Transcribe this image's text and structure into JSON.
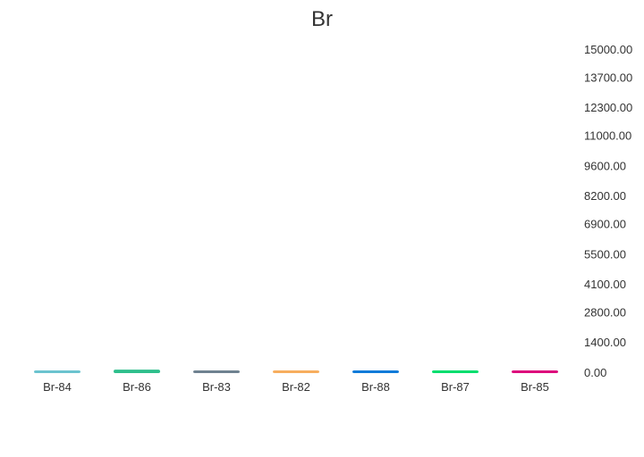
{
  "chart_data": {
    "type": "bar",
    "title": "Br",
    "categories": [
      "Br-84",
      "Br-86",
      "Br-83",
      "Br-82",
      "Br-88",
      "Br-87",
      "Br-85"
    ],
    "values": [
      40,
      160,
      20,
      20,
      70,
      50,
      30
    ],
    "colors": [
      "#6bc3cf",
      "#2ebf8c",
      "#6f8290",
      "#f7ae5e",
      "#0f7bd9",
      "#00de6e",
      "#dd0a7c"
    ],
    "yticks": [
      "0.00",
      "1400.00",
      "2800.00",
      "4100.00",
      "5500.00",
      "6900.00",
      "8200.00",
      "9600.00",
      "11000.00",
      "12300.00",
      "13700.00",
      "15000.00"
    ],
    "ylim": [
      0,
      15000
    ],
    "y_axis_position": "right",
    "grid": false,
    "legend": "none"
  }
}
